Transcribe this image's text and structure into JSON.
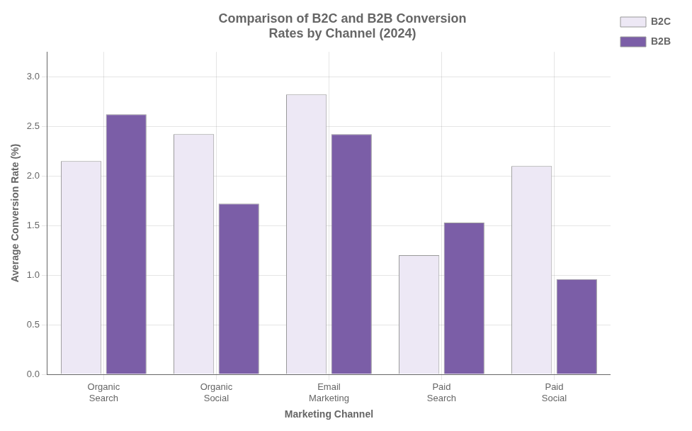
{
  "chart_data": {
    "type": "bar",
    "title": "Comparison of B2C and B2B Conversion\nRates by Channel (2024)",
    "xlabel": "Marketing Channel",
    "ylabel": "Average Conversion Rate (%)",
    "categories": [
      "Organic\nSearch",
      "Organic\nSocial",
      "Email\nMarketing",
      "Paid\nSearch",
      "Paid\nSocial"
    ],
    "series": [
      {
        "name": "B2C",
        "color": "#ede8f5",
        "values": [
          2.15,
          2.42,
          2.82,
          1.2,
          2.1
        ]
      },
      {
        "name": "B2B",
        "color": "#7B5EA7",
        "values": [
          2.62,
          1.72,
          2.42,
          1.53,
          0.96
        ]
      }
    ],
    "ylim": [
      0,
      3.25
    ],
    "yticks": [
      {
        "value": 0,
        "label": "0.0"
      },
      0.5,
      {
        "value": 1,
        "label": "1.0"
      },
      1.5,
      {
        "value": 2,
        "label": "2.0"
      },
      2.5,
      {
        "value": 3,
        "label": "3.0"
      }
    ],
    "grid": true,
    "legend": "top-right"
  }
}
